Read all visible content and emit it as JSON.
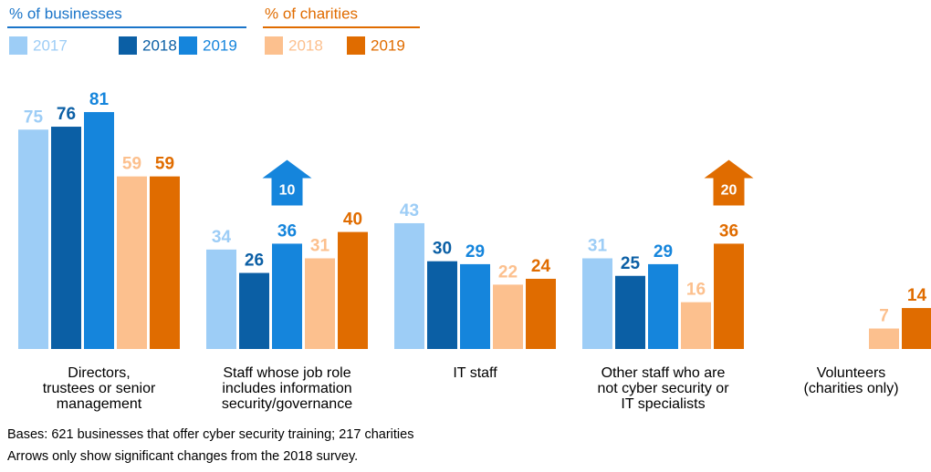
{
  "chart_data": {
    "type": "bar",
    "legend_groups": [
      {
        "name": "% of businesses",
        "color": "#1b75c9",
        "series": [
          0,
          1,
          2
        ]
      },
      {
        "name": "% of charities",
        "color": "#e06c00",
        "series": [
          3,
          4
        ]
      }
    ],
    "categories": [
      [
        "Directors,",
        "trustees or senior",
        "management"
      ],
      [
        "Staff whose job role",
        "includes information",
        "security/governance"
      ],
      [
        "IT staff"
      ],
      [
        "Other staff who are",
        "not cyber security or",
        "IT specialists"
      ],
      [
        "Volunteers",
        "(charities only)"
      ]
    ],
    "series": [
      {
        "name": "2017",
        "color": "#9dcdf6",
        "values": [
          75,
          34,
          43,
          31,
          null
        ]
      },
      {
        "name": "2018",
        "color": "#0b5fa5",
        "values": [
          76,
          26,
          30,
          25,
          null
        ]
      },
      {
        "name": "2019",
        "color": "#1585dc",
        "values": [
          81,
          36,
          29,
          29,
          null
        ]
      },
      {
        "name": "2018",
        "color": "#fcc08e",
        "values": [
          59,
          31,
          22,
          16,
          7
        ]
      },
      {
        "name": "2019",
        "color": "#e06c00",
        "values": [
          59,
          40,
          24,
          36,
          14
        ]
      }
    ],
    "ylim": [
      0,
      100
    ],
    "arrows": [
      {
        "category": 1,
        "series": 2,
        "value": 10
      },
      {
        "category": 3,
        "series": 4,
        "value": 20
      }
    ],
    "notes": [
      "Bases: 621 businesses that offer cyber security training; 217 charities",
      "Arrows only show significant changes from the 2018 survey."
    ]
  }
}
